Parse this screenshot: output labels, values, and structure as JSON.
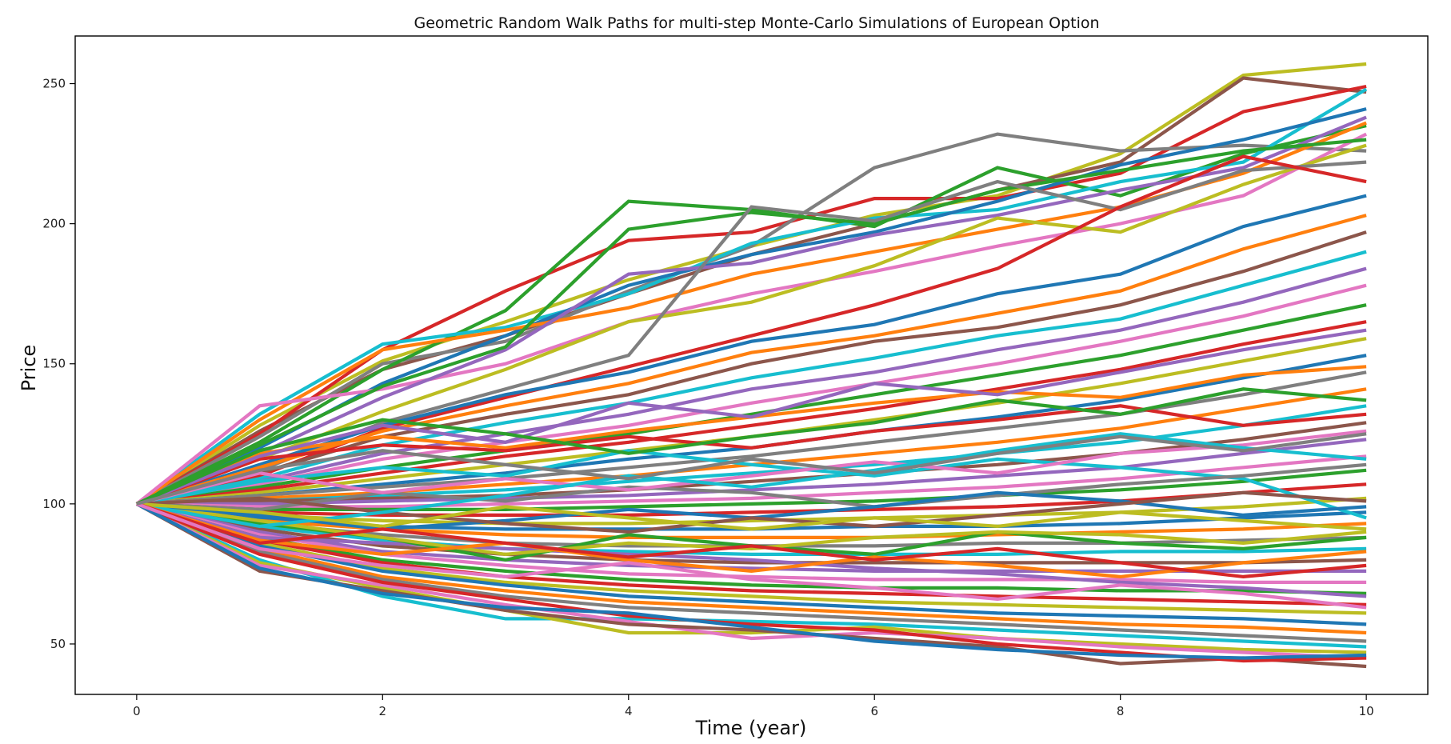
{
  "chart_data": {
    "type": "line",
    "title": "Geometric Random Walk Paths for multi-step Monte-Carlo Simulations of European Option",
    "xlabel": "Time (year)",
    "ylabel": "Price",
    "x": [
      0,
      1,
      2,
      3,
      4,
      5,
      6,
      7,
      8,
      9,
      10
    ],
    "xticks": [
      0,
      2,
      4,
      6,
      8,
      10
    ],
    "yticks": [
      50,
      100,
      150,
      200,
      250
    ],
    "xlim": [
      -0.5,
      10.5
    ],
    "ylim": [
      32,
      267
    ],
    "grid": false,
    "legend": "none",
    "colors": [
      "#1f77b4",
      "#ff7f0e",
      "#2ca02c",
      "#d62728",
      "#9467bd",
      "#8c564b",
      "#e377c2",
      "#7f7f7f",
      "#bcbd22",
      "#17becf"
    ],
    "series": [
      {
        "color": "#bcbd22",
        "values": [
          100,
          128,
          151,
          165,
          180,
          192,
          203,
          210,
          225,
          253,
          257
        ]
      },
      {
        "color": "#8c564b",
        "values": [
          100,
          126,
          148,
          160,
          175,
          189,
          200,
          212,
          222,
          252,
          247
        ]
      },
      {
        "color": "#d62728",
        "values": [
          100,
          125,
          155,
          176,
          194,
          197,
          209,
          209,
          218,
          240,
          249
        ]
      },
      {
        "color": "#7f7f7f",
        "values": [
          100,
          124,
          150,
          158,
          176,
          192,
          220,
          232,
          226,
          228,
          226
        ]
      },
      {
        "color": "#2ca02c",
        "values": [
          100,
          122,
          148,
          169,
          208,
          205,
          199,
          220,
          210,
          225,
          235
        ]
      },
      {
        "color": "#17becf",
        "values": [
          100,
          132,
          157,
          163,
          175,
          193,
          202,
          205,
          215,
          222,
          248
        ]
      },
      {
        "color": "#1f77b4",
        "values": [
          100,
          120,
          143,
          160,
          178,
          189,
          197,
          208,
          221,
          230,
          241
        ]
      },
      {
        "color": "#ff7f0e",
        "values": [
          100,
          130,
          155,
          162,
          170,
          182,
          190,
          198,
          206,
          218,
          236
        ]
      },
      {
        "color": "#e377c2",
        "values": [
          100,
          135,
          141,
          150,
          165,
          175,
          183,
          192,
          200,
          210,
          232
        ]
      },
      {
        "color": "#9467bd",
        "values": [
          100,
          118,
          138,
          155,
          182,
          186,
          196,
          203,
          212,
          220,
          238
        ]
      },
      {
        "color": "#2ca02c",
        "values": [
          100,
          121,
          142,
          156,
          198,
          204,
          200,
          212,
          219,
          226,
          230
        ]
      },
      {
        "color": "#bcbd22",
        "values": [
          100,
          116,
          133,
          148,
          165,
          172,
          185,
          202,
          197,
          214,
          228
        ]
      },
      {
        "color": "#7f7f7f",
        "values": [
          100,
          112,
          129,
          141,
          153,
          206,
          201,
          215,
          205,
          219,
          222
        ]
      },
      {
        "color": "#d62728",
        "values": [
          100,
          110,
          127,
          138,
          149,
          160,
          171,
          184,
          206,
          224,
          215
        ]
      },
      {
        "color": "#1f77b4",
        "values": [
          100,
          114,
          128,
          139,
          147,
          158,
          164,
          175,
          182,
          199,
          210
        ]
      },
      {
        "color": "#ff7f0e",
        "values": [
          100,
          113,
          126,
          135,
          143,
          154,
          160,
          168,
          176,
          191,
          203
        ]
      },
      {
        "color": "#8c564b",
        "values": [
          100,
          111,
          124,
          132,
          139,
          150,
          158,
          163,
          171,
          183,
          197
        ]
      },
      {
        "color": "#17becf",
        "values": [
          100,
          109,
          121,
          129,
          136,
          145,
          152,
          160,
          166,
          178,
          190
        ]
      },
      {
        "color": "#9467bd",
        "values": [
          100,
          108,
          118,
          125,
          132,
          141,
          147,
          155,
          162,
          172,
          184
        ]
      },
      {
        "color": "#e377c2",
        "values": [
          100,
          107,
          116,
          122,
          128,
          136,
          143,
          150,
          158,
          167,
          178
        ]
      },
      {
        "color": "#2ca02c",
        "values": [
          100,
          106,
          113,
          119,
          125,
          132,
          139,
          146,
          153,
          162,
          171
        ]
      },
      {
        "color": "#d62728",
        "values": [
          100,
          105,
          111,
          117,
          122,
          128,
          134,
          141,
          148,
          157,
          165
        ]
      },
      {
        "color": "#bcbd22",
        "values": [
          100,
          104,
          109,
          114,
          119,
          124,
          130,
          136,
          143,
          151,
          159
        ]
      },
      {
        "color": "#1f77b4",
        "values": [
          100,
          103,
          107,
          111,
          116,
          120,
          126,
          131,
          137,
          145,
          153
        ]
      },
      {
        "color": "#7f7f7f",
        "values": [
          100,
          103,
          106,
          109,
          113,
          117,
          122,
          127,
          132,
          139,
          147
        ]
      },
      {
        "color": "#ff7f0e",
        "values": [
          100,
          102,
          104,
          107,
          110,
          114,
          118,
          122,
          127,
          134,
          141
        ]
      },
      {
        "color": "#17becf",
        "values": [
          100,
          101,
          103,
          105,
          108,
          111,
          114,
          118,
          122,
          128,
          135
        ]
      },
      {
        "color": "#8c564b",
        "values": [
          100,
          101,
          102,
          103,
          105,
          108,
          111,
          114,
          118,
          123,
          129
        ]
      },
      {
        "color": "#9467bd",
        "values": [
          100,
          100,
          101,
          102,
          103,
          105,
          107,
          110,
          113,
          118,
          123
        ]
      },
      {
        "color": "#e377c2",
        "values": [
          100,
          99,
          99,
          100,
          101,
          102,
          104,
          106,
          109,
          113,
          117
        ]
      },
      {
        "color": "#2ca02c",
        "values": [
          100,
          98,
          98,
          98,
          99,
          100,
          101,
          103,
          105,
          108,
          112
        ]
      },
      {
        "color": "#d62728",
        "values": [
          100,
          97,
          96,
          96,
          96,
          97,
          98,
          99,
          101,
          104,
          107
        ]
      },
      {
        "color": "#bcbd22",
        "values": [
          100,
          96,
          94,
          93,
          93,
          94,
          95,
          96,
          97,
          99,
          102
        ]
      },
      {
        "color": "#1f77b4",
        "values": [
          100,
          95,
          92,
          91,
          91,
          91,
          92,
          92,
          93,
          95,
          97
        ]
      },
      {
        "color": "#ff7f0e",
        "values": [
          100,
          94,
          91,
          89,
          88,
          88,
          88,
          89,
          90,
          91,
          93
        ]
      },
      {
        "color": "#7f7f7f",
        "values": [
          100,
          93,
          89,
          86,
          85,
          85,
          85,
          86,
          86,
          87,
          88
        ]
      },
      {
        "color": "#17becf",
        "values": [
          100,
          92,
          87,
          84,
          83,
          82,
          82,
          82,
          83,
          83,
          84
        ]
      },
      {
        "color": "#8c564b",
        "values": [
          100,
          91,
          85,
          82,
          80,
          79,
          79,
          79,
          79,
          79,
          80
        ]
      },
      {
        "color": "#9467bd",
        "values": [
          100,
          90,
          83,
          80,
          78,
          77,
          76,
          76,
          76,
          76,
          76
        ]
      },
      {
        "color": "#e377c2",
        "values": [
          100,
          89,
          82,
          78,
          75,
          74,
          73,
          73,
          73,
          72,
          72
        ]
      },
      {
        "color": "#2ca02c",
        "values": [
          100,
          88,
          80,
          76,
          73,
          71,
          70,
          70,
          69,
          69,
          68
        ]
      },
      {
        "color": "#d62728",
        "values": [
          100,
          87,
          79,
          74,
          71,
          69,
          68,
          67,
          66,
          65,
          64
        ]
      },
      {
        "color": "#bcbd22",
        "values": [
          100,
          86,
          77,
          72,
          69,
          67,
          65,
          64,
          63,
          62,
          61
        ]
      },
      {
        "color": "#1f77b4",
        "values": [
          100,
          85,
          76,
          71,
          67,
          65,
          63,
          61,
          60,
          59,
          57
        ]
      },
      {
        "color": "#ff7f0e",
        "values": [
          100,
          84,
          74,
          69,
          65,
          63,
          61,
          59,
          57,
          56,
          54
        ]
      },
      {
        "color": "#7f7f7f",
        "values": [
          100,
          83,
          73,
          67,
          63,
          61,
          59,
          57,
          55,
          53,
          51
        ]
      },
      {
        "color": "#17becf",
        "values": [
          100,
          80,
          67,
          59,
          59,
          58,
          57,
          55,
          53,
          51,
          49
        ]
      },
      {
        "color": "#bcbd22",
        "values": [
          100,
          79,
          70,
          62,
          54,
          54,
          56,
          52,
          50,
          48,
          47
        ]
      },
      {
        "color": "#e377c2",
        "values": [
          100,
          78,
          71,
          64,
          58,
          52,
          54,
          52,
          49,
          47,
          45
        ]
      },
      {
        "color": "#8c564b",
        "values": [
          100,
          76,
          69,
          62,
          57,
          55,
          52,
          49,
          43,
          45,
          42
        ]
      },
      {
        "color": "#d62728",
        "values": [
          100,
          82,
          72,
          66,
          60,
          57,
          55,
          50,
          47,
          44,
          45
        ]
      },
      {
        "color": "#1f77b4",
        "values": [
          100,
          77,
          68,
          63,
          61,
          56,
          51,
          48,
          46,
          45,
          46
        ]
      },
      {
        "color": "#9467bd",
        "values": [
          100,
          88,
          86,
          84,
          82,
          80,
          77,
          75,
          72,
          70,
          67
        ]
      },
      {
        "color": "#2ca02c",
        "values": [
          100,
          93,
          88,
          80,
          89,
          85,
          82,
          90,
          86,
          84,
          88
        ]
      },
      {
        "color": "#bcbd22",
        "values": [
          100,
          94,
          88,
          82,
          86,
          84,
          88,
          90,
          89,
          86,
          90
        ]
      },
      {
        "color": "#17becf",
        "values": [
          100,
          108,
          113,
          110,
          119,
          114,
          110,
          116,
          113,
          109,
          95
        ]
      },
      {
        "color": "#ff7f0e",
        "values": [
          100,
          118,
          124,
          120,
          126,
          131,
          136,
          140,
          138,
          146,
          149
        ]
      },
      {
        "color": "#d62728",
        "values": [
          100,
          116,
          121,
          119,
          124,
          120,
          126,
          130,
          135,
          128,
          132
        ]
      },
      {
        "color": "#7f7f7f",
        "values": [
          100,
          98,
          104,
          101,
          106,
          104,
          99,
          103,
          107,
          110,
          114
        ]
      },
      {
        "color": "#e377c2",
        "values": [
          100,
          111,
          104,
          109,
          105,
          110,
          115,
          111,
          118,
          121,
          126
        ]
      },
      {
        "color": "#1f77b4",
        "values": [
          100,
          96,
          91,
          94,
          98,
          95,
          99,
          104,
          101,
          96,
          99
        ]
      },
      {
        "color": "#8c564b",
        "values": [
          100,
          102,
          97,
          93,
          90,
          95,
          92,
          96,
          100,
          104,
          101
        ]
      },
      {
        "color": "#9467bd",
        "values": [
          100,
          117,
          128,
          122,
          136,
          131,
          143,
          139,
          147,
          155,
          162
        ]
      },
      {
        "color": "#2ca02c",
        "values": [
          100,
          119,
          130,
          125,
          118,
          124,
          129,
          137,
          132,
          141,
          137
        ]
      },
      {
        "color": "#17becf",
        "values": [
          100,
          92,
          97,
          103,
          110,
          106,
          112,
          119,
          125,
          120,
          116
        ]
      },
      {
        "color": "#bcbd22",
        "values": [
          100,
          97,
          92,
          99,
          95,
          91,
          95,
          92,
          97,
          94,
          91
        ]
      },
      {
        "color": "#ff7f0e",
        "values": [
          100,
          87,
          82,
          86,
          80,
          76,
          81,
          78,
          74,
          79,
          83
        ]
      },
      {
        "color": "#d62728",
        "values": [
          100,
          86,
          91,
          86,
          81,
          85,
          80,
          84,
          79,
          74,
          78
        ]
      },
      {
        "color": "#e377c2",
        "values": [
          100,
          84,
          78,
          74,
          79,
          73,
          70,
          66,
          71,
          68,
          63
        ]
      },
      {
        "color": "#7f7f7f",
        "values": [
          100,
          112,
          119,
          114,
          109,
          116,
          111,
          118,
          124,
          119,
          125
        ]
      }
    ]
  }
}
